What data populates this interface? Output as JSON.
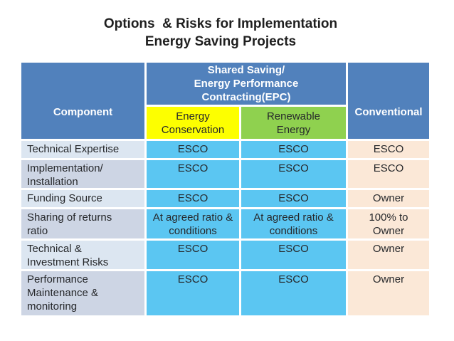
{
  "title": {
    "text": "Options  & Risks for Implementation\nEnergy Saving Projects"
  },
  "colors": {
    "header-blue": "#5181BC",
    "yellow": "#FDFF00",
    "green": "#8FD14F",
    "cyan": "#5BC6F2",
    "peach": "#FBE8D7",
    "row-light": "#DCE6F1",
    "row-dark": "#CDD5E4",
    "header-text": "#FFFFFF",
    "body-text": "#26282B",
    "title-text": "#1F1F1F"
  },
  "table": {
    "header": {
      "component": "Component",
      "epc_group": "Shared Saving/\nEnergy Performance\nContracting(EPC)",
      "energy_conservation": "Energy\nConservation",
      "renewable_energy": "Renewable\nEnergy",
      "conventional": "Conventional"
    },
    "rows": [
      {
        "component": "Technical Expertise",
        "energy_conservation": "ESCO",
        "renewable_energy": "ESCO",
        "conventional": "ESCO"
      },
      {
        "component": "Implementation/\nInstallation",
        "energy_conservation": "ESCO",
        "renewable_energy": "ESCO",
        "conventional": "ESCO"
      },
      {
        "component": "Funding Source",
        "energy_conservation": "ESCO",
        "renewable_energy": "ESCO",
        "conventional": "Owner"
      },
      {
        "component": "Sharing of returns\nratio",
        "energy_conservation": "At agreed ratio &\nconditions",
        "renewable_energy": "At agreed ratio &\nconditions",
        "conventional": "100% to\nOwner"
      },
      {
        "component": "Technical &\nInvestment Risks",
        "energy_conservation": "ESCO",
        "renewable_energy": "ESCO",
        "conventional": "Owner"
      },
      {
        "component": "Performance\nMaintenance &\nmonitoring",
        "energy_conservation": "ESCO",
        "renewable_energy": "ESCO",
        "conventional": "Owner"
      }
    ]
  }
}
